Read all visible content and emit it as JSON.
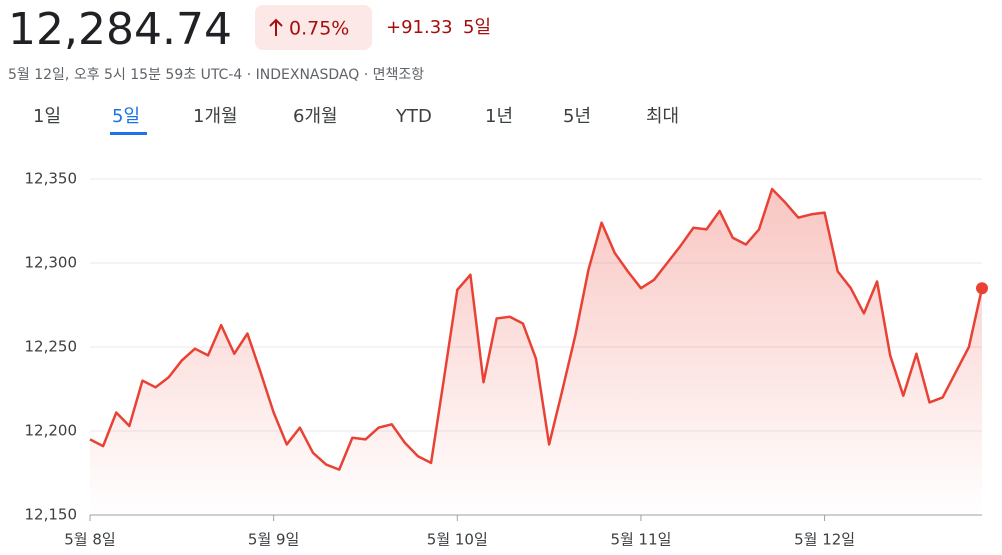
{
  "header": {
    "price": "12,284.74",
    "change_percent": "0.75%",
    "change": "+91.33",
    "period": "5일",
    "subtitle": "5월 12일, 오후 5시 15분 59초 UTC-4 · INDEXNASDAQ · 면책조항"
  },
  "tabs": [
    "1일",
    "5일",
    "1개월",
    "6개월",
    "YTD",
    "1년",
    "5년",
    "최대"
  ],
  "chart_data": {
    "type": "line",
    "grid": true,
    "categories": [
      "5월 8일",
      null,
      null,
      null,
      null,
      null,
      null,
      null,
      null,
      null,
      null,
      null,
      null,
      null,
      "5월 9일",
      null,
      null,
      null,
      null,
      null,
      null,
      null,
      null,
      null,
      null,
      null,
      null,
      null,
      "5월 10일",
      null,
      null,
      null,
      null,
      null,
      null,
      null,
      null,
      null,
      null,
      null,
      null,
      null,
      "5월 11일",
      null,
      null,
      null,
      null,
      null,
      null,
      null,
      null,
      null,
      null,
      null,
      null,
      null,
      "5월 12일",
      null,
      null,
      null,
      null,
      null,
      null,
      null,
      null,
      null,
      null,
      null,
      null
    ],
    "series": [
      {
        "color": "#e94235",
        "values": [
          12195,
          12191,
          12211,
          12203,
          12230,
          12226,
          12232,
          12242,
          12249,
          12245,
          12263,
          12246,
          12258,
          12235,
          12211,
          12192,
          12202,
          12187,
          12180,
          12177,
          12196,
          12195,
          12202,
          12204,
          12193,
          12185,
          12181,
          12232,
          12284,
          12293,
          12229,
          12267,
          12268,
          12264,
          12243,
          12192,
          12224,
          12257,
          12296,
          12324,
          12306,
          12295,
          12285,
          12290,
          12300,
          12310,
          12321,
          12320,
          12331,
          12315,
          12311,
          12320,
          12344,
          12336,
          12327,
          12329,
          12330,
          12295,
          12285,
          12270,
          12289,
          12245,
          12221,
          12246,
          12217,
          12220,
          12235,
          12250,
          12285
        ]
      }
    ],
    "ylim": [
      12150,
      12350
    ],
    "yticks": [
      {
        "value": 12150,
        "label": "12,150"
      },
      {
        "value": 12200,
        "label": "12,200"
      },
      {
        "value": 12250,
        "label": "12,250"
      },
      {
        "value": 12300,
        "label": "12,300"
      },
      {
        "value": 12350,
        "label": "12,350"
      }
    ]
  }
}
